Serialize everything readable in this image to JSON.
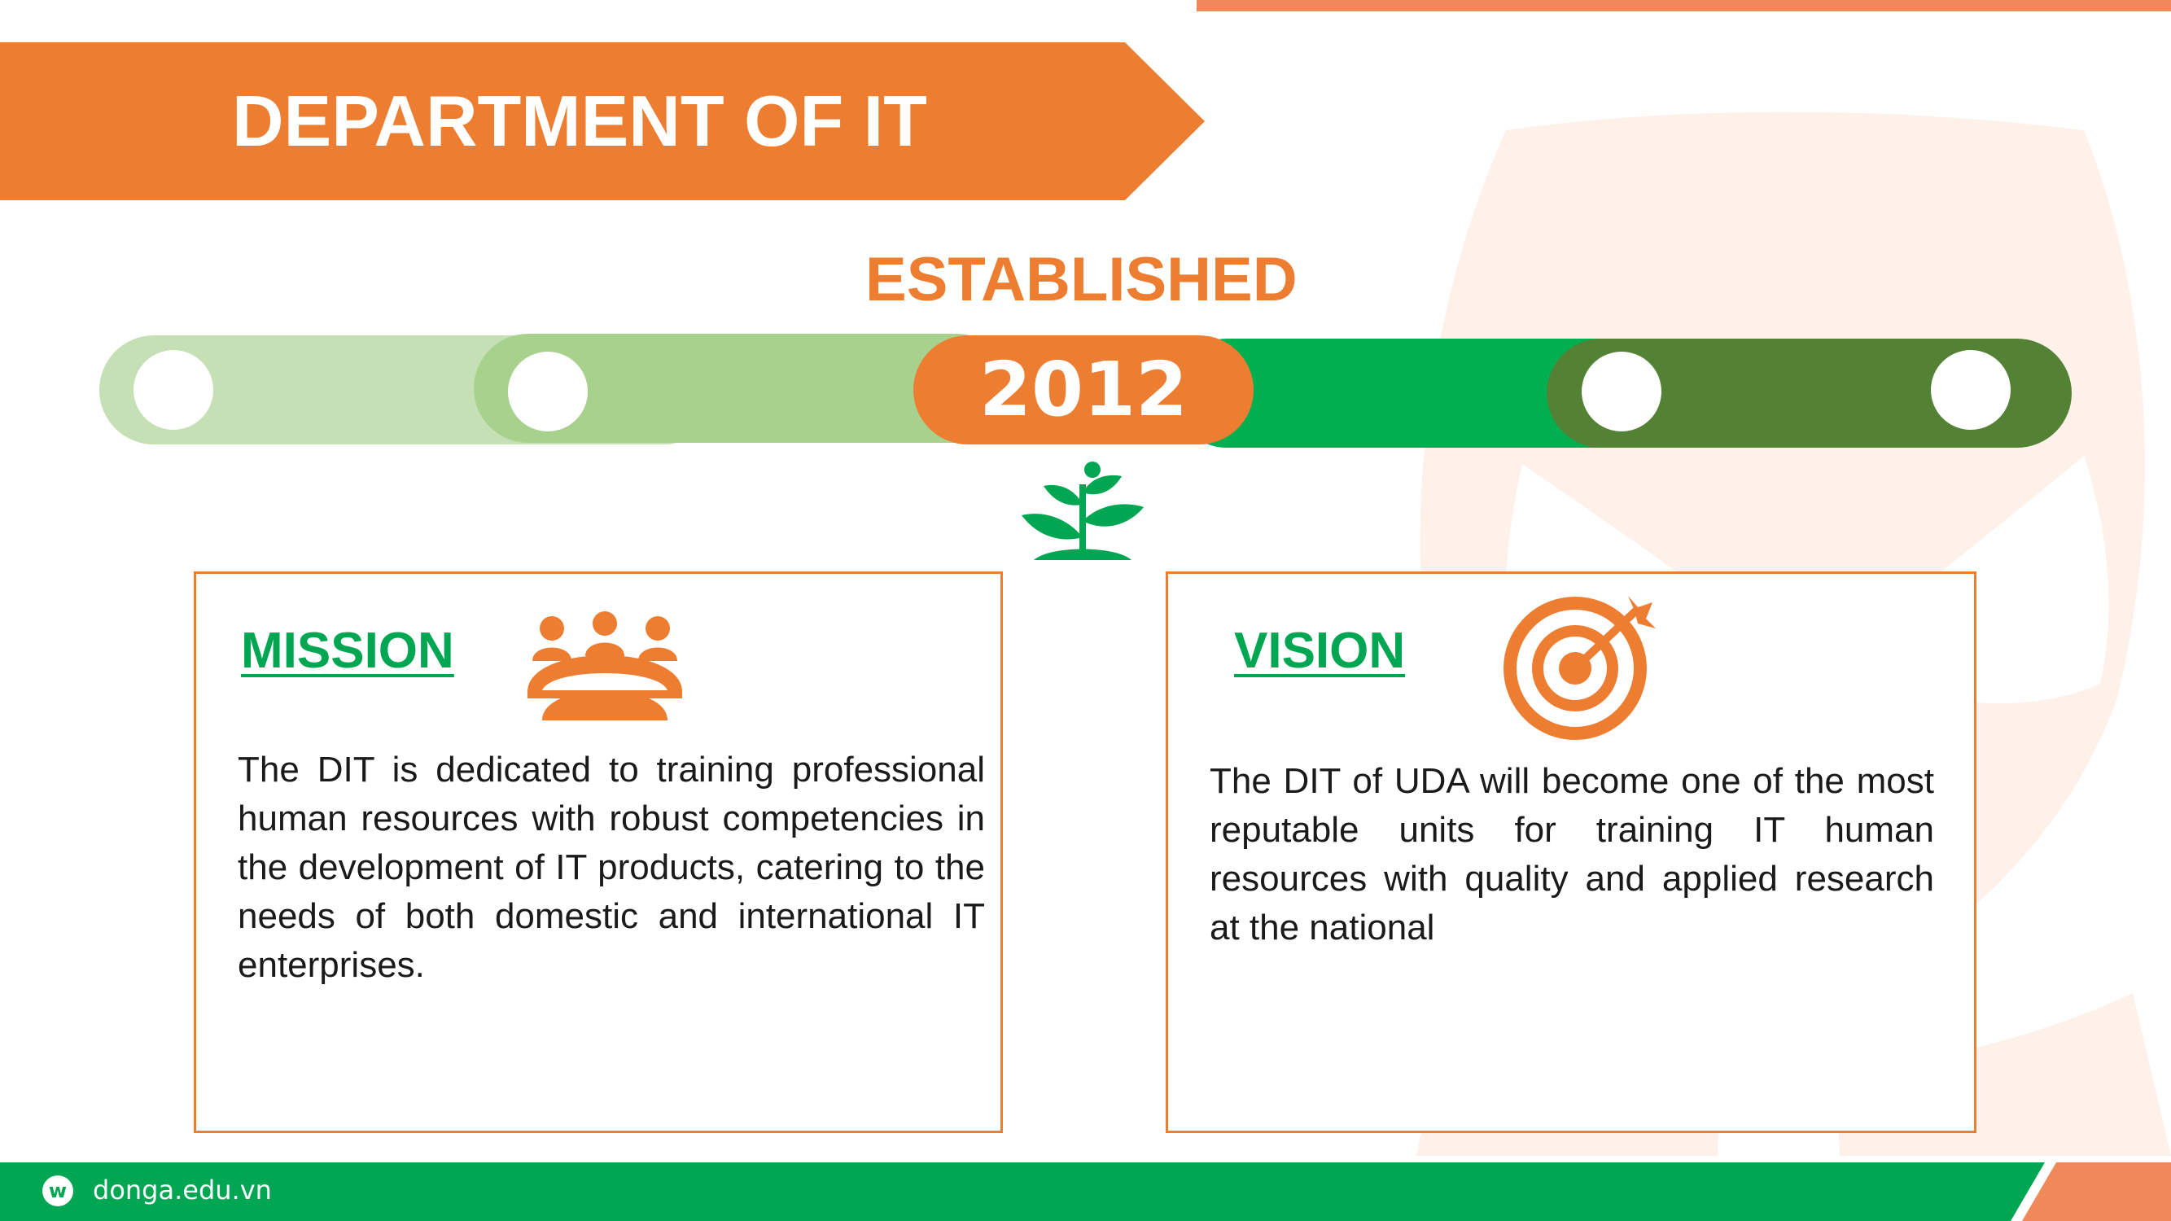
{
  "header": {
    "title": "DEPARTMENT OF IT"
  },
  "timeline": {
    "label": "ESTABLISHED",
    "year": "2012"
  },
  "mission": {
    "heading": "MISSION",
    "text": "The DIT is dedicated to training professional human resources with robust competencies in the development of IT products, catering to the needs of both domestic and international IT enterprises.",
    "icon": "team-meeting-icon"
  },
  "vision": {
    "heading": "VISION",
    "text": "The DIT of UDA will become one of the most reputable units for training IT human resources with quality and applied research at the national",
    "icon": "target-icon"
  },
  "footer": {
    "url": "donga.edu.vn",
    "logo_letter": "w"
  },
  "colors": {
    "orange": "#ED7D31",
    "green": "#00A651",
    "light_green": "#C5E0B4",
    "mid_green": "#A9D18E",
    "dark_green": "#548235"
  }
}
